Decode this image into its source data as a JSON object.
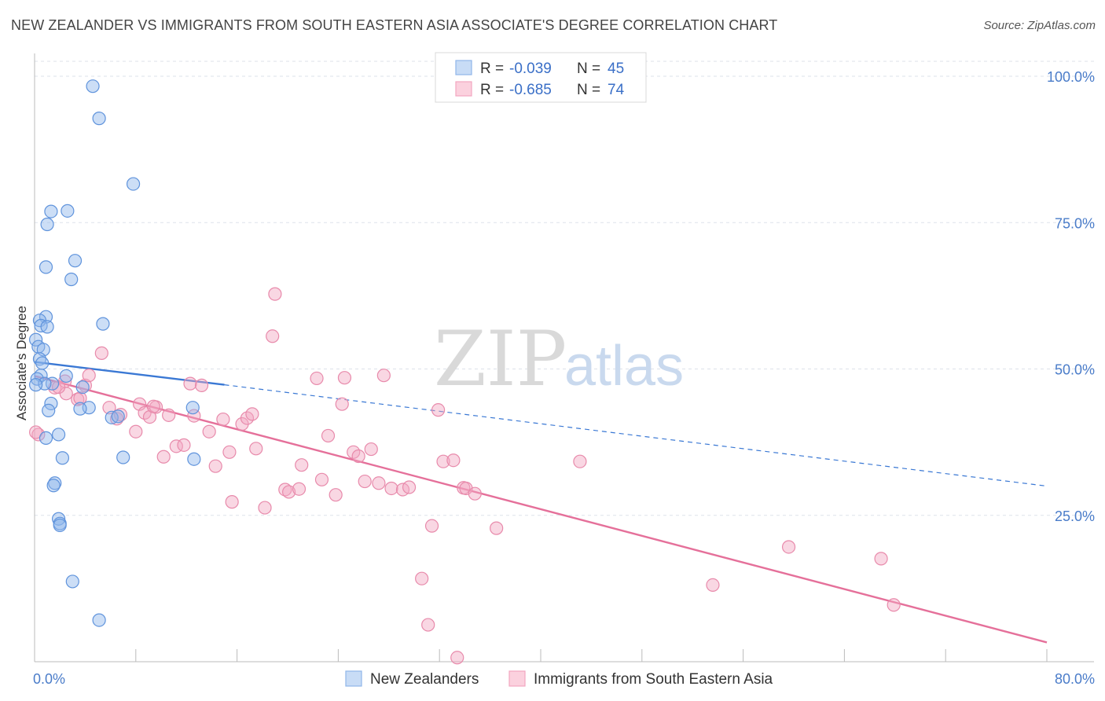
{
  "title": "NEW ZEALANDER VS IMMIGRANTS FROM SOUTH EASTERN ASIA ASSOCIATE'S DEGREE CORRELATION CHART",
  "source": "Source: ZipAtlas.com",
  "watermark": {
    "zip": "ZIP",
    "atlas": "atlas"
  },
  "colors": {
    "blue": "#8fb6ea",
    "blue_line": "#3a78d4",
    "pink": "#f2a6c0",
    "pink_line": "#e5709a",
    "tick_text": "#4a7cc9",
    "grid": "#dde2ea"
  },
  "legend": {
    "r_label": "R =",
    "n_label": "N =",
    "entries": [
      {
        "r": "-0.039",
        "n": "45"
      },
      {
        "r": "-0.685",
        "n": "74"
      }
    ]
  },
  "chart_data": {
    "type": "scatter",
    "title": "NEW ZEALANDER VS IMMIGRANTS FROM SOUTH EASTERN ASIA ASSOCIATE'S DEGREE CORRELATION CHART",
    "xlabel": "",
    "ylabel": "Associate's Degree",
    "xlim": [
      0,
      80
    ],
    "ylim": [
      0,
      100
    ],
    "x_ticks": [
      "0.0%",
      "80.0%"
    ],
    "y_ticks": [
      {
        "value": 25,
        "label": "25.0%"
      },
      {
        "value": 50,
        "label": "50.0%"
      },
      {
        "value": 75,
        "label": "75.0%"
      },
      {
        "value": 100,
        "label": "100.0%"
      }
    ],
    "grid": true,
    "legend_position": "top-center",
    "series": [
      {
        "name": "New Zealanders",
        "color": "#8fb6ea",
        "r": -0.039,
        "n": 45,
        "trend": {
          "x0": 0,
          "y0": 51.2,
          "x1": 15,
          "y1": 47.3,
          "dashed_to_x": 80,
          "dashed_to_y": 30.0
        },
        "points": [
          [
            4.6,
            98.3
          ],
          [
            5.1,
            92.8
          ],
          [
            7.8,
            81.6
          ],
          [
            2.6,
            77.0
          ],
          [
            1.3,
            76.9
          ],
          [
            1.0,
            74.7
          ],
          [
            3.2,
            68.5
          ],
          [
            0.9,
            67.4
          ],
          [
            2.9,
            65.3
          ],
          [
            0.9,
            58.9
          ],
          [
            0.4,
            58.3
          ],
          [
            5.4,
            57.7
          ],
          [
            0.5,
            57.4
          ],
          [
            1.0,
            57.2
          ],
          [
            0.1,
            55.0
          ],
          [
            0.3,
            53.8
          ],
          [
            0.7,
            53.3
          ],
          [
            0.4,
            51.7
          ],
          [
            0.6,
            51.0
          ],
          [
            0.5,
            48.9
          ],
          [
            2.5,
            48.8
          ],
          [
            0.2,
            48.3
          ],
          [
            1.4,
            47.5
          ],
          [
            0.8,
            47.5
          ],
          [
            0.1,
            47.3
          ],
          [
            3.8,
            46.9
          ],
          [
            1.3,
            44.1
          ],
          [
            4.3,
            43.4
          ],
          [
            3.6,
            43.2
          ],
          [
            1.1,
            42.9
          ],
          [
            12.5,
            43.4
          ],
          [
            6.1,
            41.7
          ],
          [
            1.9,
            38.8
          ],
          [
            0.9,
            38.2
          ],
          [
            2.2,
            34.8
          ],
          [
            7.0,
            34.9
          ],
          [
            12.6,
            34.6
          ],
          [
            1.6,
            30.5
          ],
          [
            1.5,
            30.1
          ],
          [
            1.9,
            24.4
          ],
          [
            2.0,
            23.6
          ],
          [
            2.0,
            23.3
          ],
          [
            3.0,
            13.7
          ],
          [
            5.1,
            7.1
          ],
          [
            6.6,
            41.9
          ]
        ]
      },
      {
        "name": "Immigrants from South Eastern Asia",
        "color": "#f2a6c0",
        "r": -0.685,
        "n": 74,
        "trend": {
          "x0": 0,
          "y0": 48.8,
          "x1": 80,
          "y1": 3.3
        },
        "points": [
          [
            0.3,
            38.8
          ],
          [
            1.6,
            46.8
          ],
          [
            2.5,
            45.8
          ],
          [
            3.4,
            44.8
          ],
          [
            4.0,
            47.2
          ],
          [
            4.3,
            48.9
          ],
          [
            5.3,
            52.7
          ],
          [
            5.9,
            43.4
          ],
          [
            6.5,
            41.5
          ],
          [
            6.8,
            42.2
          ],
          [
            8.0,
            39.3
          ],
          [
            8.3,
            44.0
          ],
          [
            8.7,
            42.5
          ],
          [
            9.1,
            41.8
          ],
          [
            9.6,
            43.5
          ],
          [
            10.2,
            35.0
          ],
          [
            10.6,
            42.1
          ],
          [
            11.2,
            36.8
          ],
          [
            11.8,
            37.0
          ],
          [
            12.3,
            47.5
          ],
          [
            12.6,
            42.0
          ],
          [
            13.2,
            47.2
          ],
          [
            13.8,
            39.3
          ],
          [
            14.3,
            33.4
          ],
          [
            14.9,
            41.4
          ],
          [
            15.4,
            35.8
          ],
          [
            15.6,
            27.3
          ],
          [
            16.4,
            40.6
          ],
          [
            16.8,
            41.6
          ],
          [
            17.2,
            42.3
          ],
          [
            17.5,
            36.4
          ],
          [
            18.2,
            26.3
          ],
          [
            18.8,
            55.6
          ],
          [
            19.0,
            62.8
          ],
          [
            19.8,
            29.4
          ],
          [
            20.1,
            29.0
          ],
          [
            20.9,
            29.5
          ],
          [
            21.1,
            33.6
          ],
          [
            22.3,
            48.4
          ],
          [
            22.7,
            31.1
          ],
          [
            23.2,
            38.6
          ],
          [
            23.8,
            28.5
          ],
          [
            24.3,
            44.0
          ],
          [
            24.5,
            48.5
          ],
          [
            25.2,
            35.8
          ],
          [
            25.6,
            35.1
          ],
          [
            26.1,
            30.8
          ],
          [
            26.6,
            36.3
          ],
          [
            27.2,
            30.5
          ],
          [
            27.6,
            48.9
          ],
          [
            28.2,
            29.6
          ],
          [
            29.1,
            29.4
          ],
          [
            29.6,
            29.8
          ],
          [
            30.6,
            14.2
          ],
          [
            31.1,
            6.3
          ],
          [
            31.4,
            23.2
          ],
          [
            31.9,
            43.0
          ],
          [
            32.3,
            34.2
          ],
          [
            33.1,
            34.4
          ],
          [
            33.4,
            0.7
          ],
          [
            33.9,
            29.7
          ],
          [
            34.1,
            29.6
          ],
          [
            34.8,
            28.7
          ],
          [
            36.5,
            22.8
          ],
          [
            43.1,
            34.2
          ],
          [
            53.6,
            13.1
          ],
          [
            59.6,
            19.6
          ],
          [
            66.9,
            17.6
          ],
          [
            67.9,
            9.7
          ],
          [
            3.6,
            45.0
          ],
          [
            9.4,
            43.6
          ],
          [
            2.4,
            47.9
          ],
          [
            1.9,
            46.9
          ],
          [
            0.1,
            39.2
          ]
        ]
      }
    ]
  }
}
